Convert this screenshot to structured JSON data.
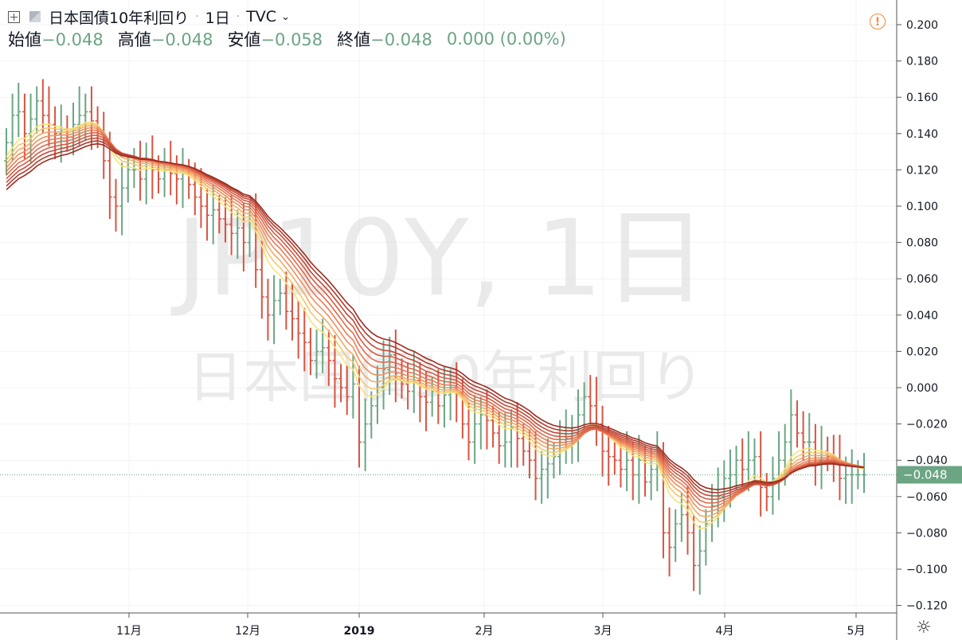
{
  "header": {
    "symbol_name": "日本国債10年利回り",
    "interval": "1日",
    "exchange": "TVC",
    "ohlc": [
      {
        "label": "始値",
        "value": "−0.048"
      },
      {
        "label": "高値",
        "value": "−0.048"
      },
      {
        "label": "安値",
        "value": "−0.058"
      },
      {
        "label": "終値",
        "value": "−0.048"
      }
    ],
    "change": "0.000 (0.00%)"
  },
  "watermark": {
    "line1": "JP10Y, 1日",
    "line2": "日本国債10年利回り"
  },
  "colors": {
    "up": "#6ba583",
    "down": "#d75442",
    "ribbon": [
      "#f7e37a",
      "#f5c76a",
      "#f3a964",
      "#ef8f5c",
      "#ea7b55",
      "#e06a4b",
      "#d45a42",
      "#c44a38",
      "#b03b2e",
      "#9b2d22"
    ]
  },
  "chart_data": {
    "type": "bar",
    "price_axis": {
      "ticks": [
        "0.200",
        "0.180",
        "0.160",
        "0.140",
        "0.120",
        "0.100",
        "0.080",
        "0.060",
        "0.040",
        "0.020",
        "0.000",
        "−0.020",
        "−0.040",
        "−0.060",
        "−0.080",
        "−0.100",
        "−0.120"
      ],
      "range": [
        -0.12,
        0.2
      ]
    },
    "time_axis": {
      "ticks": [
        "11月",
        "12月",
        "2019",
        "2月",
        "3月",
        "4月",
        "5月"
      ]
    },
    "last_price_label": "−0.048",
    "last_price": -0.048,
    "close": [
      0.135,
      0.15,
      0.152,
      0.14,
      0.148,
      0.158,
      0.15,
      0.145,
      0.14,
      0.142,
      0.138,
      0.145,
      0.15,
      0.152,
      0.147,
      0.14,
      0.125,
      0.105,
      0.1,
      0.11,
      0.12,
      0.12,
      0.115,
      0.125,
      0.12,
      0.115,
      0.12,
      0.118,
      0.115,
      0.118,
      0.112,
      0.105,
      0.1,
      0.095,
      0.098,
      0.093,
      0.09,
      0.085,
      0.088,
      0.08,
      0.095,
      0.065,
      0.05,
      0.04,
      0.048,
      0.052,
      0.042,
      0.038,
      0.03,
      0.025,
      0.015,
      0.02,
      0.022,
      0.015,
      0.005,
      0.0,
      -0.005,
      0.002,
      -0.03,
      -0.02,
      -0.01,
      0.0,
      0.01,
      0.018,
      0.008,
      0.002,
      -0.002,
      0.004,
      -0.005,
      -0.008,
      -0.002,
      -0.01,
      -0.004,
      0.0,
      -0.003,
      -0.02,
      -0.03,
      -0.02,
      -0.015,
      -0.018,
      -0.025,
      -0.032,
      -0.03,
      -0.022,
      -0.028,
      -0.035,
      -0.04,
      -0.05,
      -0.045,
      -0.042,
      -0.038,
      -0.03,
      -0.028,
      -0.025,
      -0.015,
      -0.005,
      -0.01,
      -0.02,
      -0.035,
      -0.038,
      -0.04,
      -0.045,
      -0.04,
      -0.048,
      -0.04,
      -0.052,
      -0.045,
      -0.04,
      -0.08,
      -0.088,
      -0.075,
      -0.07,
      -0.08,
      -0.098,
      -0.09,
      -0.075,
      -0.065,
      -0.06,
      -0.05,
      -0.048,
      -0.04,
      -0.045,
      -0.04,
      -0.038,
      -0.055,
      -0.06,
      -0.05,
      -0.04,
      -0.03,
      -0.015,
      -0.025,
      -0.03,
      -0.03,
      -0.04,
      -0.035,
      -0.038,
      -0.042,
      -0.05,
      -0.048,
      -0.048,
      -0.048,
      -0.048
    ]
  }
}
